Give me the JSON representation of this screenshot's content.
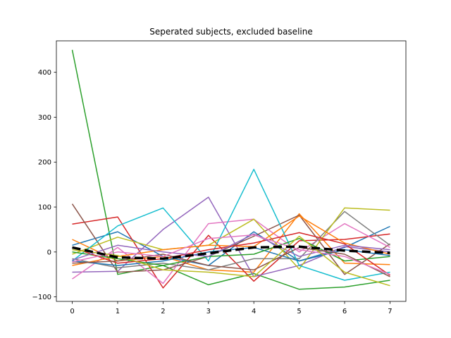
{
  "chart_data": {
    "type": "line",
    "title": "Seperated subjects, excluded baseline",
    "xlabel": "",
    "ylabel": "",
    "xlim": [
      -0.35,
      7.35
    ],
    "ylim": [
      -110,
      470
    ],
    "xticks": [
      0,
      1,
      2,
      3,
      4,
      5,
      6,
      7
    ],
    "yticks": [
      -100,
      0,
      100,
      200,
      300,
      400
    ],
    "x": [
      0,
      1,
      2,
      3,
      4,
      5,
      6,
      7
    ],
    "grid": false,
    "legend": "none",
    "series": [
      {
        "color": "#1f77b4",
        "values": [
          15,
          45,
          -10,
          -30,
          45,
          -20,
          10,
          57
        ]
      },
      {
        "color": "#ff7f0e",
        "values": [
          28,
          -20,
          -10,
          -40,
          -45,
          85,
          -25,
          -28
        ]
      },
      {
        "color": "#2ca02c",
        "values": [
          450,
          -50,
          -30,
          -73,
          -48,
          -83,
          -78,
          -63
        ]
      },
      {
        "color": "#d62728",
        "values": [
          62,
          78,
          -80,
          37,
          -65,
          25,
          28,
          40
        ]
      },
      {
        "color": "#9467bd",
        "values": [
          -45,
          -43,
          50,
          122,
          -55,
          -30,
          12,
          0
        ]
      },
      {
        "color": "#8c564b",
        "values": [
          107,
          -45,
          -40,
          -10,
          35,
          82,
          -50,
          18
        ]
      },
      {
        "color": "#e377c2",
        "values": [
          -60,
          10,
          -70,
          63,
          73,
          0,
          63,
          10
        ]
      },
      {
        "color": "#7f7f7f",
        "values": [
          -15,
          -35,
          -25,
          -40,
          -15,
          -15,
          90,
          15
        ]
      },
      {
        "color": "#bcbd22",
        "values": [
          -5,
          33,
          5,
          15,
          73,
          -38,
          98,
          93
        ]
      },
      {
        "color": "#17becf",
        "values": [
          -20,
          58,
          98,
          -20,
          184,
          -30,
          -63,
          -45
        ]
      },
      {
        "color": "#1f77b4",
        "values": [
          -20,
          -30,
          -20,
          0,
          10,
          -20,
          5,
          -8
        ]
      },
      {
        "color": "#ff7f0e",
        "values": [
          -30,
          -10,
          5,
          15,
          12,
          80,
          20,
          -5
        ]
      },
      {
        "color": "#2ca02c",
        "values": [
          0,
          -15,
          -30,
          -10,
          -5,
          30,
          -20,
          -10
        ]
      },
      {
        "color": "#d62728",
        "values": [
          10,
          -25,
          -15,
          5,
          20,
          43,
          18,
          -52
        ]
      },
      {
        "color": "#9467bd",
        "values": [
          -18,
          15,
          0,
          -10,
          40,
          -10,
          15,
          5
        ]
      },
      {
        "color": "#8c564b",
        "values": [
          -25,
          -20,
          -5,
          -30,
          -40,
          10,
          -5,
          -55
        ]
      },
      {
        "color": "#e377c2",
        "values": [
          -22,
          0,
          -10,
          30,
          38,
          5,
          -10,
          -50
        ]
      },
      {
        "color": "#bcbd22",
        "values": [
          5,
          -8,
          -40,
          -45,
          -55,
          35,
          -45,
          -75
        ]
      }
    ],
    "mean_series": {
      "color": "#000000",
      "values": [
        10,
        -12,
        -15,
        -3,
        10,
        12,
        3,
        -2
      ]
    }
  }
}
